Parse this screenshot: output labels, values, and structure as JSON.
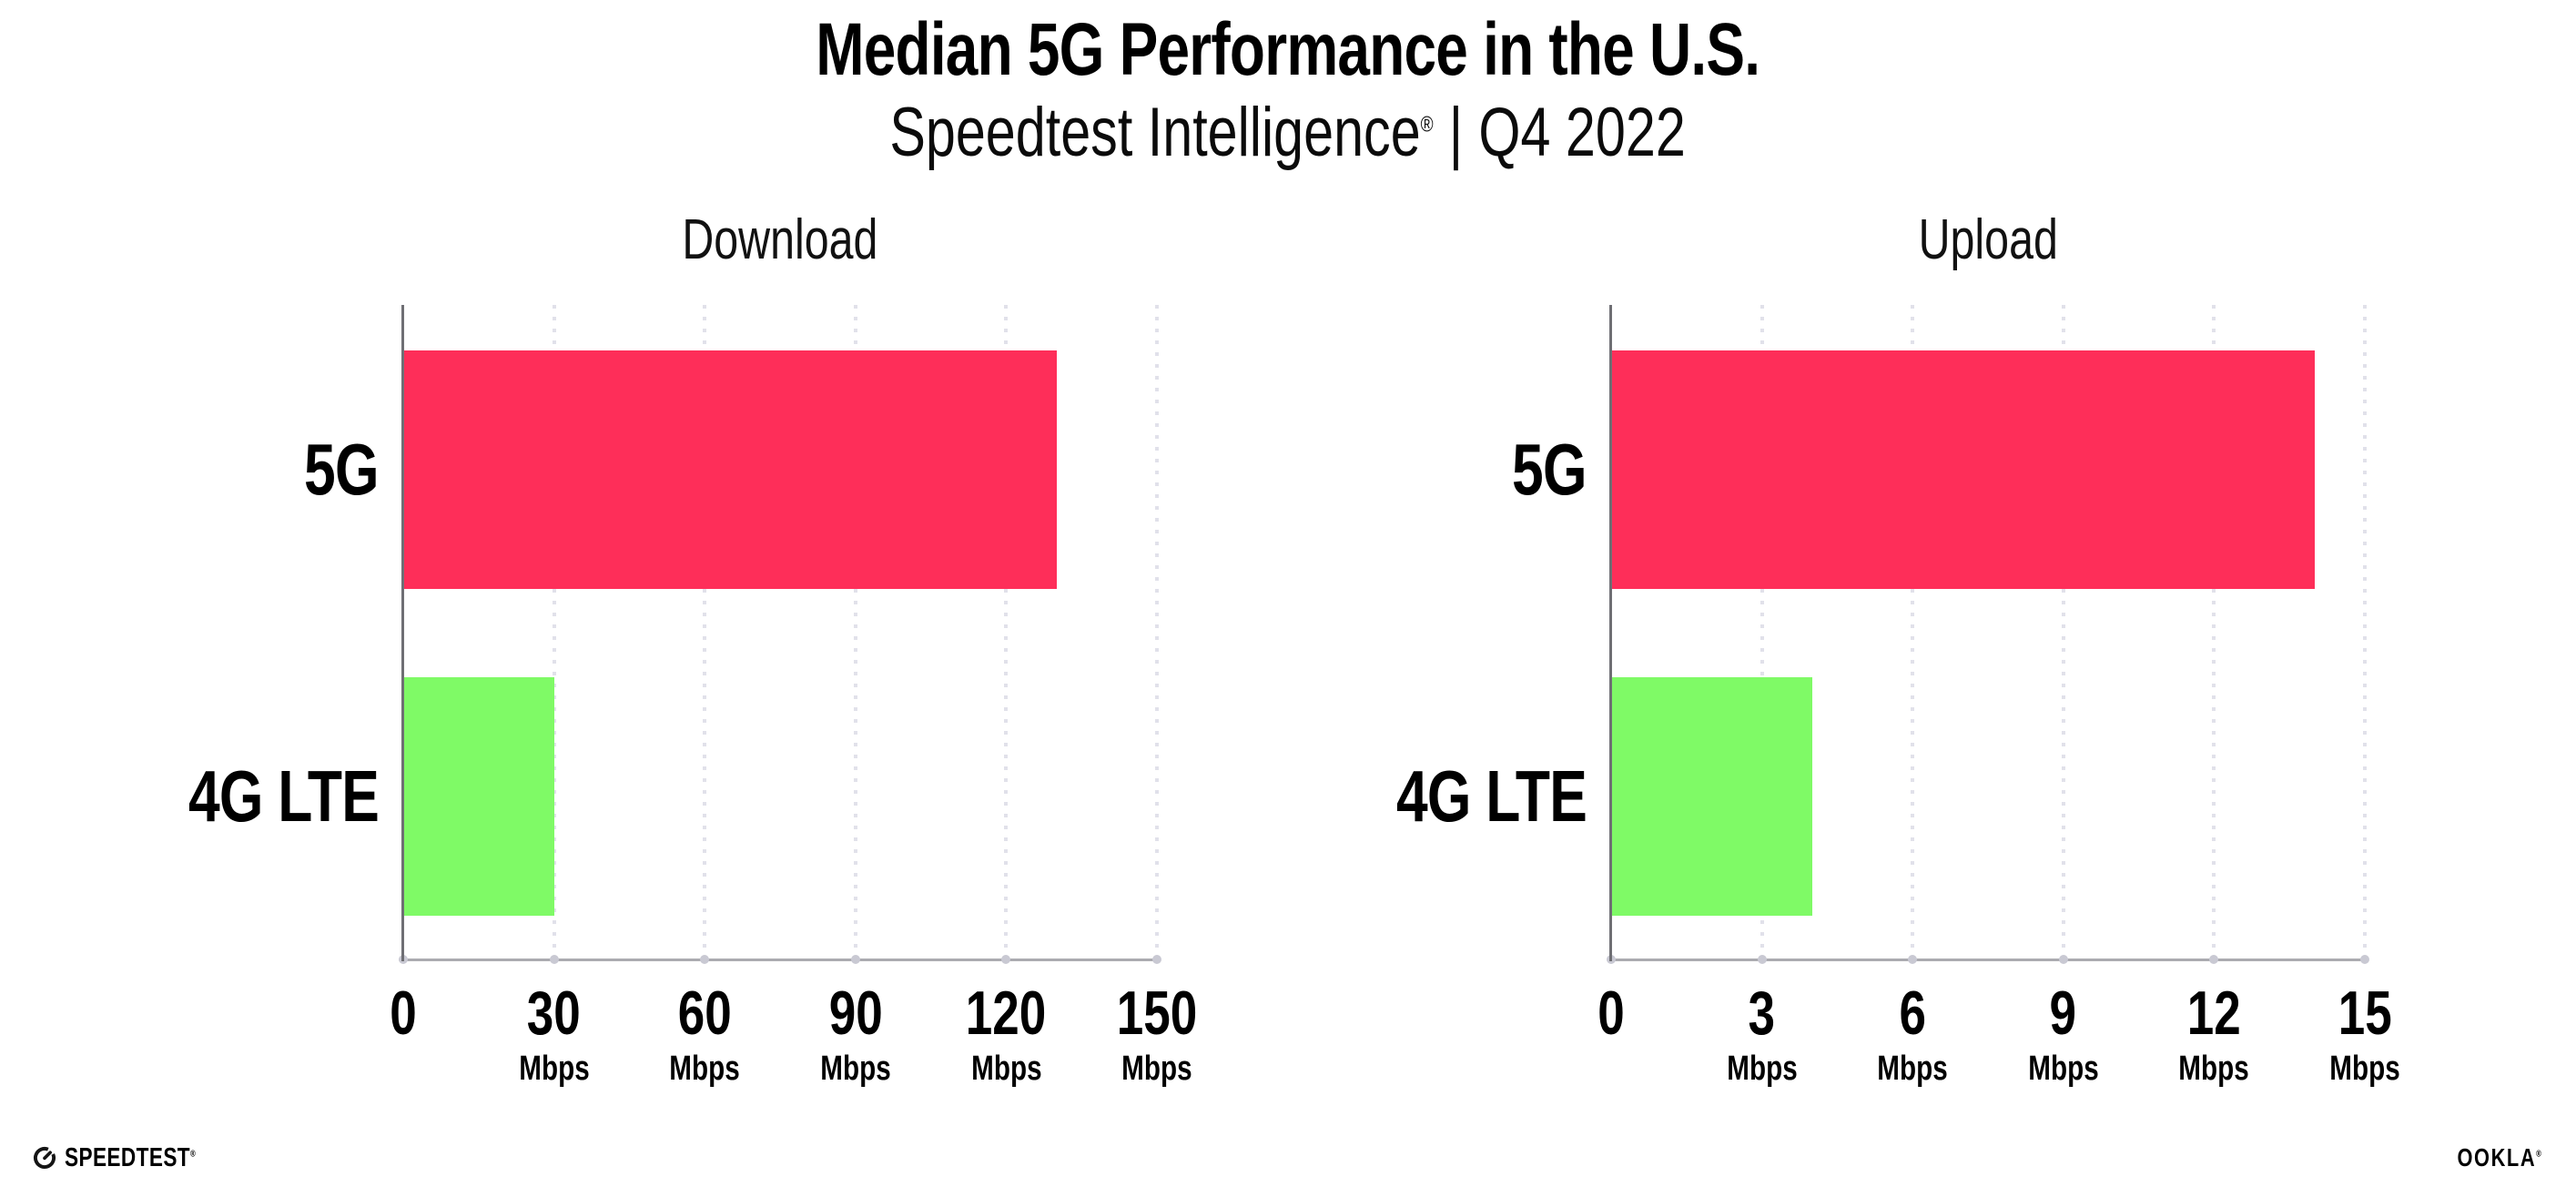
{
  "page": {
    "background": "#FFFFFF"
  },
  "header": {
    "title": "Median 5G Performance in the U.S.",
    "subtitle": {
      "brand": "Speedtest Intelligence",
      "registered": "®",
      "separator": "|",
      "period": "Q4 2022"
    }
  },
  "chart_data": [
    {
      "type": "bar",
      "orientation": "horizontal",
      "title": "Download",
      "categories": [
        "5G",
        "4G LTE"
      ],
      "values": [
        130,
        30
      ],
      "unit": "Mbps",
      "xlim": [
        0,
        150
      ],
      "xticks": [
        "0",
        "30",
        "60",
        "90",
        "120",
        "150"
      ],
      "grid": "vertical-dotted",
      "legend": "none",
      "bar_colors": [
        "#FE2E59",
        "#7FFA66"
      ]
    },
    {
      "type": "bar",
      "orientation": "horizontal",
      "title": "Upload",
      "categories": [
        "5G",
        "4G LTE"
      ],
      "values": [
        14,
        4
      ],
      "unit": "Mbps",
      "xlim": [
        0,
        15
      ],
      "xticks": [
        "0",
        "3",
        "6",
        "9",
        "12",
        "15"
      ],
      "grid": "vertical-dotted",
      "legend": "none",
      "bar_colors": [
        "#FE2E59",
        "#7FFA66"
      ]
    }
  ],
  "colors": {
    "bar_5g": "#FE2E59",
    "bar_4g_lte": "#7FFA66",
    "grid_dots": "#E1E1EA",
    "y_axis": "#6F6F74",
    "x_axis": "#ABABB0",
    "text": "#000000"
  },
  "footer": {
    "speedtest_wordmark": "SPEEDTEST",
    "speedtest_registered": "®",
    "ookla_wordmark": "OOKLA",
    "ookla_registered": "®"
  }
}
